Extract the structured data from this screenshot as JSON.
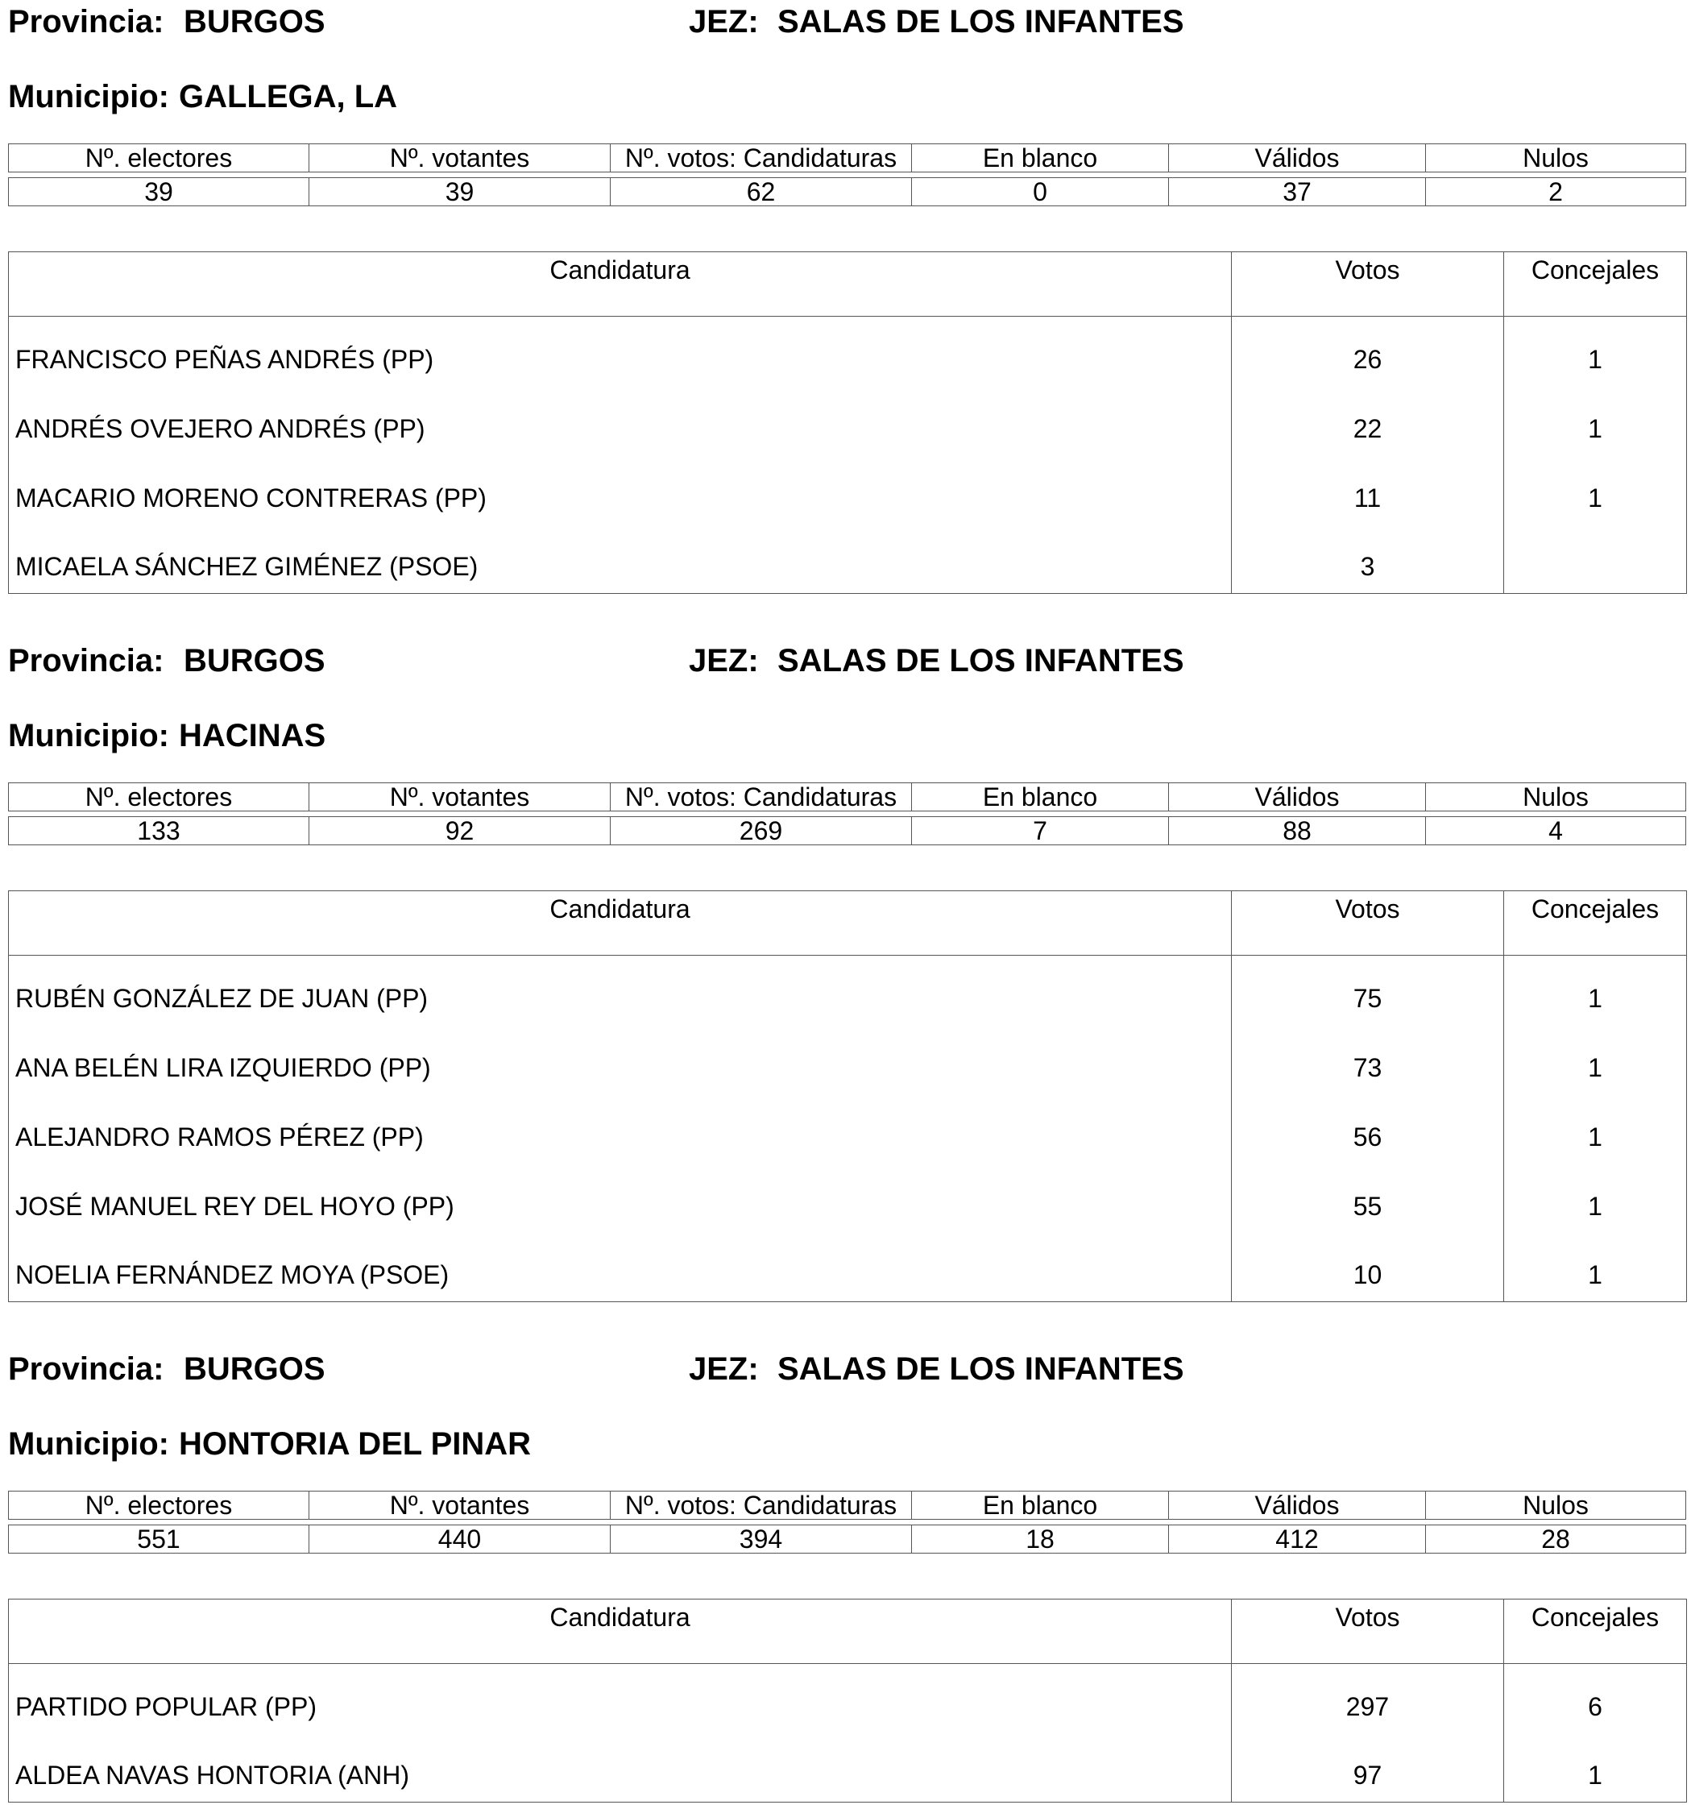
{
  "labels": {
    "provincia": "Provincia:",
    "jez": "JEZ:",
    "municipio": "Municipio:",
    "stats_headers": [
      "Nº. electores",
      "Nº. votantes",
      "Nº. votos: Candidaturas",
      "En blanco",
      "Válidos",
      "Nulos"
    ],
    "cand_headers": [
      "Candidatura",
      "Votos",
      "Concejales"
    ]
  },
  "blocks": [
    {
      "provincia": "BURGOS",
      "jez": "SALAS DE LOS INFANTES",
      "municipio": "GALLEGA, LA",
      "stats": [
        "39",
        "39",
        "62",
        "0",
        "37",
        "2"
      ],
      "candidates": [
        {
          "name": "FRANCISCO PEÑAS ANDRÉS (PP)",
          "votos": "26",
          "concejales": "1"
        },
        {
          "name": "ANDRÉS OVEJERO ANDRÉS (PP)",
          "votos": "22",
          "concejales": "1"
        },
        {
          "name": "MACARIO MORENO CONTRERAS (PP)",
          "votos": "11",
          "concejales": "1"
        },
        {
          "name": "MICAELA SÁNCHEZ GIMÉNEZ (PSOE)",
          "votos": "3",
          "concejales": ""
        }
      ]
    },
    {
      "provincia": "BURGOS",
      "jez": "SALAS DE LOS INFANTES",
      "municipio": "HACINAS",
      "stats": [
        "133",
        "92",
        "269",
        "7",
        "88",
        "4"
      ],
      "candidates": [
        {
          "name": "RUBÉN GONZÁLEZ DE JUAN (PP)",
          "votos": "75",
          "concejales": "1"
        },
        {
          "name": "ANA BELÉN LIRA IZQUIERDO (PP)",
          "votos": "73",
          "concejales": "1"
        },
        {
          "name": "ALEJANDRO RAMOS PÉREZ (PP)",
          "votos": "56",
          "concejales": "1"
        },
        {
          "name": "JOSÉ MANUEL REY DEL HOYO (PP)",
          "votos": "55",
          "concejales": "1"
        },
        {
          "name": "NOELIA FERNÁNDEZ MOYA (PSOE)",
          "votos": "10",
          "concejales": "1"
        }
      ]
    },
    {
      "provincia": "BURGOS",
      "jez": "SALAS DE LOS INFANTES",
      "municipio": "HONTORIA DEL PINAR",
      "stats": [
        "551",
        "440",
        "394",
        "18",
        "412",
        "28"
      ],
      "candidates": [
        {
          "name": "PARTIDO POPULAR (PP)",
          "votos": "297",
          "concejales": "6"
        },
        {
          "name": "ALDEA NAVAS HONTORIA (ANH)",
          "votos": "97",
          "concejales": "1"
        }
      ]
    }
  ]
}
